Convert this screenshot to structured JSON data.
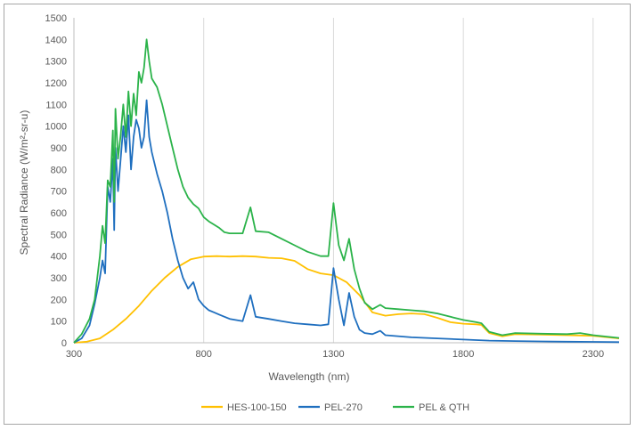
{
  "chart_data": {
    "type": "line",
    "xlabel": "Wavelength (nm)",
    "ylabel": "Spectral Radiance (W/m²-sr-u)",
    "xlim": [
      300,
      2400
    ],
    "ylim": [
      0,
      1500
    ],
    "x_ticks": [
      300,
      800,
      1300,
      1800,
      2300
    ],
    "y_ticks": [
      0,
      100,
      200,
      300,
      400,
      500,
      600,
      700,
      800,
      900,
      1000,
      1100,
      1200,
      1300,
      1400,
      1500
    ],
    "grid": "vertical",
    "legend_position": "bottom",
    "series": [
      {
        "name": "HES-100-150",
        "color": "#ffc000",
        "points": [
          [
            300,
            0
          ],
          [
            350,
            5
          ],
          [
            400,
            20
          ],
          [
            450,
            60
          ],
          [
            500,
            110
          ],
          [
            550,
            170
          ],
          [
            600,
            240
          ],
          [
            650,
            300
          ],
          [
            700,
            350
          ],
          [
            750,
            385
          ],
          [
            800,
            398
          ],
          [
            850,
            400
          ],
          [
            900,
            398
          ],
          [
            950,
            400
          ],
          [
            1000,
            398
          ],
          [
            1050,
            392
          ],
          [
            1100,
            390
          ],
          [
            1150,
            378
          ],
          [
            1200,
            340
          ],
          [
            1250,
            320
          ],
          [
            1300,
            312
          ],
          [
            1350,
            280
          ],
          [
            1400,
            220
          ],
          [
            1450,
            140
          ],
          [
            1500,
            125
          ],
          [
            1550,
            132
          ],
          [
            1600,
            135
          ],
          [
            1650,
            132
          ],
          [
            1700,
            115
          ],
          [
            1750,
            95
          ],
          [
            1800,
            88
          ],
          [
            1850,
            85
          ],
          [
            1870,
            82
          ],
          [
            1900,
            45
          ],
          [
            1950,
            30
          ],
          [
            2000,
            40
          ],
          [
            2100,
            38
          ],
          [
            2200,
            35
          ],
          [
            2300,
            32
          ],
          [
            2400,
            20
          ]
        ]
      },
      {
        "name": "PEL-270",
        "color": "#1f6fbf",
        "points": [
          [
            300,
            0
          ],
          [
            330,
            20
          ],
          [
            360,
            80
          ],
          [
            380,
            180
          ],
          [
            400,
            300
          ],
          [
            410,
            380
          ],
          [
            420,
            320
          ],
          [
            430,
            720
          ],
          [
            440,
            650
          ],
          [
            450,
            850
          ],
          [
            455,
            520
          ],
          [
            460,
            900
          ],
          [
            470,
            700
          ],
          [
            480,
            850
          ],
          [
            490,
            1000
          ],
          [
            500,
            880
          ],
          [
            510,
            1050
          ],
          [
            520,
            800
          ],
          [
            530,
            950
          ],
          [
            540,
            1030
          ],
          [
            550,
            990
          ],
          [
            560,
            900
          ],
          [
            570,
            950
          ],
          [
            580,
            1120
          ],
          [
            590,
            950
          ],
          [
            600,
            880
          ],
          [
            620,
            780
          ],
          [
            640,
            700
          ],
          [
            660,
            600
          ],
          [
            680,
            480
          ],
          [
            700,
            380
          ],
          [
            720,
            300
          ],
          [
            740,
            250
          ],
          [
            760,
            280
          ],
          [
            780,
            200
          ],
          [
            800,
            170
          ],
          [
            820,
            150
          ],
          [
            840,
            140
          ],
          [
            860,
            130
          ],
          [
            880,
            120
          ],
          [
            900,
            110
          ],
          [
            950,
            100
          ],
          [
            980,
            220
          ],
          [
            1000,
            120
          ],
          [
            1050,
            110
          ],
          [
            1100,
            100
          ],
          [
            1150,
            90
          ],
          [
            1200,
            85
          ],
          [
            1250,
            80
          ],
          [
            1280,
            85
          ],
          [
            1300,
            345
          ],
          [
            1320,
            200
          ],
          [
            1340,
            80
          ],
          [
            1360,
            230
          ],
          [
            1380,
            120
          ],
          [
            1400,
            60
          ],
          [
            1420,
            45
          ],
          [
            1450,
            40
          ],
          [
            1480,
            55
          ],
          [
            1500,
            35
          ],
          [
            1600,
            25
          ],
          [
            1700,
            20
          ],
          [
            1800,
            15
          ],
          [
            1900,
            10
          ],
          [
            2000,
            8
          ],
          [
            2100,
            6
          ],
          [
            2200,
            5
          ],
          [
            2300,
            4
          ],
          [
            2400,
            3
          ]
        ]
      },
      {
        "name": "PEL & QTH",
        "color": "#2bb34a",
        "points": [
          [
            300,
            0
          ],
          [
            330,
            40
          ],
          [
            360,
            110
          ],
          [
            380,
            200
          ],
          [
            400,
            400
          ],
          [
            410,
            540
          ],
          [
            420,
            460
          ],
          [
            430,
            750
          ],
          [
            440,
            720
          ],
          [
            450,
            980
          ],
          [
            455,
            650
          ],
          [
            460,
            1080
          ],
          [
            470,
            850
          ],
          [
            480,
            960
          ],
          [
            490,
            1100
          ],
          [
            500,
            950
          ],
          [
            510,
            1160
          ],
          [
            520,
            1000
          ],
          [
            530,
            1150
          ],
          [
            540,
            1050
          ],
          [
            550,
            1250
          ],
          [
            560,
            1200
          ],
          [
            570,
            1270
          ],
          [
            580,
            1400
          ],
          [
            590,
            1300
          ],
          [
            600,
            1220
          ],
          [
            620,
            1180
          ],
          [
            640,
            1100
          ],
          [
            660,
            1000
          ],
          [
            680,
            900
          ],
          [
            700,
            800
          ],
          [
            720,
            720
          ],
          [
            740,
            670
          ],
          [
            760,
            640
          ],
          [
            780,
            620
          ],
          [
            800,
            580
          ],
          [
            820,
            560
          ],
          [
            840,
            545
          ],
          [
            860,
            530
          ],
          [
            880,
            510
          ],
          [
            900,
            505
          ],
          [
            950,
            505
          ],
          [
            980,
            625
          ],
          [
            1000,
            515
          ],
          [
            1050,
            510
          ],
          [
            1100,
            480
          ],
          [
            1150,
            450
          ],
          [
            1200,
            420
          ],
          [
            1250,
            400
          ],
          [
            1280,
            400
          ],
          [
            1300,
            645
          ],
          [
            1320,
            450
          ],
          [
            1340,
            380
          ],
          [
            1360,
            480
          ],
          [
            1380,
            340
          ],
          [
            1400,
            250
          ],
          [
            1420,
            185
          ],
          [
            1450,
            155
          ],
          [
            1480,
            175
          ],
          [
            1500,
            160
          ],
          [
            1550,
            155
          ],
          [
            1600,
            150
          ],
          [
            1650,
            145
          ],
          [
            1700,
            135
          ],
          [
            1750,
            120
          ],
          [
            1800,
            105
          ],
          [
            1850,
            95
          ],
          [
            1870,
            90
          ],
          [
            1900,
            50
          ],
          [
            1950,
            35
          ],
          [
            2000,
            45
          ],
          [
            2100,
            42
          ],
          [
            2200,
            40
          ],
          [
            2250,
            45
          ],
          [
            2300,
            35
          ],
          [
            2400,
            22
          ]
        ]
      }
    ]
  }
}
